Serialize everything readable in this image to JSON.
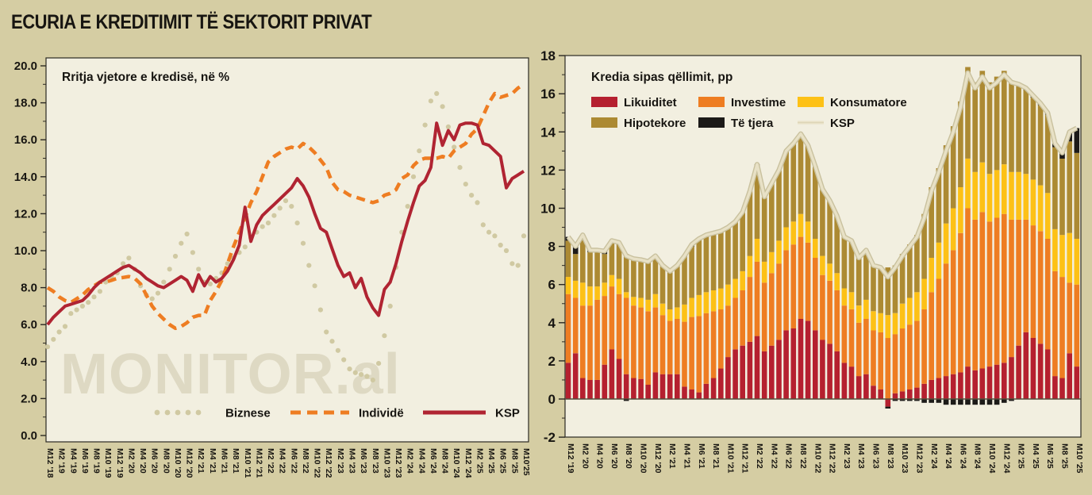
{
  "page": {
    "title": "ECURIA E KREDITIMIT TË SEKTORIT PRIVAT",
    "watermark": "MONITOR.al",
    "colors": {
      "background": "#d5cda3",
      "plot_background": "#f2efe0",
      "frame": "#2b2822",
      "text": "#171511",
      "watermark": "#ded9c3",
      "ksp_line_right_core": "#e8e1c6",
      "ksp_line_right_edge": "#c9c19e"
    }
  },
  "chart_data": [
    {
      "type": "line",
      "title": "Rritja vjetore e kredisë, në %",
      "ylim": [
        0,
        20
      ],
      "ytick_step": 2,
      "ytick_labels": [
        "0.0",
        "2.0",
        "4.0",
        "6.0",
        "8.0",
        "10.0",
        "12.0",
        "14.0",
        "16.0",
        "18.0",
        "20.0"
      ],
      "grid": false,
      "legend_position": "bottom-inside",
      "x_labels": [
        "M12 '18",
        "M2 '19",
        "M4 '19",
        "M6 '19",
        "M8 '19",
        "M10 '19",
        "M12 '19",
        "M2 '20",
        "M4 '20",
        "M6 '20",
        "M8 '20",
        "M10 '20",
        "M12 '20",
        "M2 '21",
        "M4 '21",
        "M6 '21",
        "M8 '21",
        "M10 '21",
        "M12 '21",
        "M2 '22",
        "M4 '22",
        "M6 '22",
        "M8 '22",
        "M10 '22",
        "M12 '22",
        "M2 '23",
        "M4 '23",
        "M6 '23",
        "M8 '23",
        "M10 '23",
        "M12 '23",
        "M2 '24",
        "M4 '24",
        "M6 '24",
        "M8 '24",
        "M10 '24",
        "M12 '24",
        "M2 '25",
        "M4 '25",
        "M6 '25",
        "M8 '25",
        "M10'25"
      ],
      "months_per_label": 2,
      "series": [
        {
          "name": "Biznese",
          "style": "dotted",
          "color": "#d0c9a2",
          "values": [
            4.8,
            5.2,
            5.6,
            5.9,
            6.6,
            6.8,
            7.0,
            7.2,
            7.5,
            7.8,
            8.3,
            8.6,
            8.8,
            9.3,
            9.6,
            9.0,
            8.1,
            7.6,
            7.4,
            7.7,
            8.3,
            9.0,
            9.7,
            10.4,
            10.9,
            9.9,
            9.0,
            8.3,
            8.2,
            8.5,
            8.8,
            9.3,
            9.6,
            9.9,
            10.2,
            10.7,
            11.0,
            11.3,
            11.5,
            11.9,
            12.3,
            12.7,
            12.4,
            11.5,
            10.4,
            9.2,
            8.1,
            6.8,
            5.6,
            5.1,
            4.6,
            4.1,
            3.6,
            3.4,
            3.3,
            3.2,
            3.0,
            3.9,
            5.4,
            7.0,
            9.1,
            11.0,
            12.4,
            14.0,
            15.4,
            16.8,
            18.1,
            18.5,
            17.8,
            16.7,
            15.6,
            14.5,
            13.6,
            13.0,
            12.6,
            11.4,
            11.0,
            10.8,
            10.3,
            10.0,
            9.3,
            9.2,
            10.8
          ]
        },
        {
          "name": "Individë",
          "style": "dashed",
          "color": "#ee7d22",
          "values": [
            8.0,
            7.8,
            7.5,
            7.3,
            7.2,
            7.4,
            7.6,
            7.9,
            8.1,
            8.3,
            8.3,
            8.4,
            8.5,
            8.55,
            8.6,
            8.5,
            8.2,
            7.6,
            7.0,
            6.6,
            6.3,
            6.0,
            5.8,
            5.9,
            6.1,
            6.4,
            6.5,
            6.5,
            7.3,
            7.8,
            8.4,
            9.3,
            10.2,
            11.0,
            11.8,
            12.6,
            13.2,
            14.0,
            14.8,
            15.1,
            15.3,
            15.5,
            15.6,
            15.5,
            15.8,
            15.6,
            15.3,
            14.9,
            14.5,
            13.7,
            13.3,
            13.2,
            13.0,
            12.9,
            12.8,
            12.7,
            12.6,
            12.7,
            13.0,
            13.1,
            13.3,
            13.9,
            14.1,
            14.6,
            14.9,
            15.0,
            15.0,
            15.0,
            15.1,
            15.0,
            15.4,
            15.6,
            15.8,
            16.3,
            16.6,
            17.3,
            18.0,
            18.5,
            18.3,
            18.4,
            18.5,
            18.8,
            19.0
          ]
        },
        {
          "name": "KSP",
          "style": "solid",
          "color": "#b02432",
          "values": [
            6.0,
            6.4,
            6.7,
            7.0,
            7.1,
            7.2,
            7.3,
            7.6,
            8.0,
            8.3,
            8.5,
            8.7,
            8.9,
            9.1,
            9.2,
            9.0,
            8.8,
            8.5,
            8.3,
            8.1,
            8.0,
            8.2,
            8.4,
            8.6,
            8.4,
            7.8,
            8.7,
            8.1,
            8.6,
            8.3,
            8.5,
            8.9,
            9.5,
            10.3,
            12.35,
            10.5,
            11.4,
            11.9,
            12.2,
            12.5,
            12.8,
            13.1,
            13.4,
            13.9,
            13.5,
            12.9,
            12.0,
            11.2,
            11.0,
            10.1,
            9.2,
            8.6,
            8.8,
            8.0,
            8.5,
            7.5,
            6.9,
            6.5,
            7.9,
            8.3,
            9.3,
            10.5,
            11.6,
            12.6,
            13.5,
            13.8,
            14.5,
            16.9,
            15.7,
            16.5,
            16.0,
            16.8,
            16.9,
            16.9,
            16.8,
            15.8,
            15.7,
            15.4,
            15.1,
            13.4,
            13.9,
            14.1,
            14.3
          ]
        }
      ]
    },
    {
      "type": "stacked-bar-with-line",
      "title": "Kredia sipas qëllimit, pp",
      "ylim": [
        -2,
        18
      ],
      "ytick_step": 2,
      "ytick_labels": [
        "-2",
        "0",
        "2",
        "4",
        "6",
        "8",
        "10",
        "12",
        "14",
        "16",
        "18"
      ],
      "grid": false,
      "legend_position": "top-inside",
      "x_labels": [
        "M12 '19",
        "M2 '20",
        "M4 '20",
        "M6 '20",
        "M8 '20",
        "M10 '20",
        "M12 '20",
        "M2 '21",
        "M4 '21",
        "M6 '21",
        "M8 '21",
        "M10 '21",
        "M12 '21",
        "M2 '22",
        "M4 '22",
        "M6 '22",
        "M8 '22",
        "M10 '22",
        "M12 '22",
        "M2 '23",
        "M4 '23",
        "M6 '23",
        "M8 '23",
        "M10 '23",
        "M12 '23",
        "M2 '24",
        "M4 '24",
        "M6 '24",
        "M8 '24",
        "M10 '24",
        "M12 '24",
        "M2 '25",
        "M4 '25",
        "M6 '25",
        "M8 '25",
        "M10 '25"
      ],
      "months_per_label": 2,
      "series": [
        {
          "name": "Likuiditet",
          "color": "#b5202f",
          "values": [
            1.9,
            2.4,
            1.1,
            1.0,
            1.0,
            1.8,
            2.6,
            2.1,
            1.3,
            1.1,
            1.05,
            0.75,
            1.4,
            1.3,
            1.3,
            1.3,
            0.65,
            0.5,
            0.35,
            0.8,
            1.1,
            1.6,
            2.2,
            2.6,
            2.8,
            3.0,
            3.3,
            2.5,
            2.8,
            3.1,
            3.6,
            3.7,
            4.2,
            4.1,
            3.6,
            3.1,
            2.9,
            2.5,
            1.9,
            1.7,
            1.2,
            1.3,
            0.7,
            0.5,
            -0.4,
            0.3,
            0.4,
            0.5,
            0.6,
            0.8,
            1.0,
            1.1,
            1.2,
            1.3,
            1.4,
            1.7,
            1.5,
            1.6,
            1.7,
            1.8,
            1.9,
            2.2,
            2.8,
            3.5,
            3.2,
            2.9,
            2.6,
            1.2,
            1.1,
            2.4,
            1.7
          ]
        },
        {
          "name": "Investime",
          "color": "#ee7d22",
          "values": [
            3.6,
            2.9,
            3.8,
            3.9,
            4.2,
            3.6,
            3.3,
            3.4,
            4.0,
            3.8,
            3.75,
            3.85,
            3.4,
            3.1,
            2.8,
            2.9,
            3.4,
            3.8,
            4.0,
            3.7,
            3.5,
            3.1,
            2.7,
            2.7,
            2.9,
            3.4,
            3.9,
            3.6,
            3.8,
            4.0,
            4.2,
            4.4,
            4.3,
            4.1,
            3.8,
            3.4,
            3.3,
            3.2,
            3.0,
            3.0,
            2.8,
            2.9,
            2.9,
            3.0,
            3.2,
            3.1,
            3.3,
            3.4,
            3.5,
            3.9,
            4.6,
            5.2,
            5.9,
            6.5,
            7.3,
            8.3,
            7.9,
            8.2,
            7.6,
            7.7,
            7.8,
            7.2,
            6.6,
            5.9,
            5.9,
            5.9,
            5.8,
            5.5,
            5.3,
            3.7,
            4.3
          ]
        },
        {
          "name": "Konsumatore",
          "color": "#fdc116",
          "values": [
            0.9,
            0.9,
            1.2,
            1.0,
            0.7,
            0.7,
            0.6,
            0.8,
            0.3,
            0.45,
            0.5,
            0.6,
            0.7,
            0.6,
            0.6,
            0.6,
            0.9,
            1.0,
            1.1,
            1.1,
            1.1,
            1.1,
            1.1,
            1.0,
            1.0,
            1.1,
            1.2,
            1.1,
            1.1,
            1.2,
            1.2,
            1.2,
            1.2,
            1.1,
            1.0,
            1.0,
            0.9,
            0.9,
            0.9,
            0.9,
            0.9,
            1.0,
            1.0,
            1.0,
            1.2,
            1.1,
            1.3,
            1.4,
            1.5,
            1.6,
            1.8,
            1.9,
            2.1,
            2.2,
            2.4,
            2.6,
            2.5,
            2.6,
            2.5,
            2.5,
            2.6,
            2.5,
            2.5,
            2.4,
            2.4,
            2.4,
            2.4,
            2.2,
            2.2,
            2.6,
            2.4
          ]
        },
        {
          "name": "Hipotekore",
          "color": "#ac8a33",
          "values": [
            1.9,
            1.4,
            2.3,
            1.8,
            1.85,
            1.5,
            1.7,
            1.8,
            2.0,
            2.0,
            2.0,
            2.0,
            2.0,
            2.0,
            2.0,
            2.2,
            2.5,
            2.7,
            2.9,
            3.0,
            3.0,
            3.0,
            3.0,
            3.0,
            3.1,
            3.4,
            3.8,
            3.4,
            3.6,
            3.7,
            4.0,
            4.1,
            4.2,
            4.0,
            3.8,
            3.5,
            3.3,
            3.0,
            2.7,
            2.7,
            2.5,
            2.6,
            2.4,
            2.4,
            2.5,
            2.5,
            2.6,
            2.8,
            3.0,
            3.4,
            3.7,
            3.9,
            4.1,
            4.3,
            4.5,
            4.8,
            4.7,
            4.8,
            4.8,
            4.9,
            4.9,
            4.8,
            4.6,
            4.4,
            4.3,
            4.2,
            4.1,
            4.3,
            4.0,
            4.8,
            4.5
          ]
        },
        {
          "name": "Të tjera",
          "color": "#1c1a18",
          "values": [
            0.2,
            0.4,
            0.2,
            0.1,
            0.05,
            0.15,
            0.1,
            0.1,
            -0.1,
            0.0,
            0.0,
            0.0,
            0.0,
            0.0,
            0.0,
            0.0,
            0.05,
            0.1,
            0.05,
            0.0,
            0.0,
            0.0,
            0.0,
            0.0,
            0.0,
            0.0,
            0.1,
            0.0,
            0.0,
            0.0,
            0.0,
            0.0,
            0.0,
            0.0,
            0.0,
            0.0,
            0.0,
            0.0,
            0.0,
            0.0,
            0.0,
            0.0,
            0.0,
            0.0,
            -0.1,
            -0.1,
            -0.1,
            -0.1,
            -0.1,
            -0.2,
            -0.2,
            -0.2,
            -0.3,
            -0.3,
            -0.3,
            -0.3,
            -0.3,
            -0.3,
            -0.3,
            -0.3,
            -0.2,
            -0.1,
            0.0,
            0.1,
            0.1,
            0.1,
            0.1,
            0.2,
            0.3,
            0.5,
            1.3
          ]
        }
      ],
      "line_series": {
        "name": "KSP",
        "color": "#e0d9bb",
        "values": [
          8.5,
          8.0,
          8.6,
          7.8,
          7.8,
          7.75,
          8.3,
          8.2,
          7.5,
          7.35,
          7.3,
          7.2,
          7.5,
          7.0,
          6.7,
          7.0,
          7.5,
          8.1,
          8.4,
          8.6,
          8.7,
          8.8,
          9.0,
          9.3,
          9.8,
          10.9,
          12.3,
          10.6,
          11.3,
          12.0,
          13.0,
          13.4,
          13.9,
          13.3,
          12.2,
          11.0,
          10.4,
          9.6,
          8.5,
          8.3,
          7.4,
          7.8,
          7.0,
          6.9,
          6.4,
          6.9,
          7.5,
          8.0,
          8.5,
          9.5,
          10.9,
          11.9,
          13.0,
          14.0,
          15.3,
          17.1,
          16.3,
          16.9,
          16.3,
          16.6,
          17.0,
          16.6,
          16.5,
          16.3,
          15.9,
          15.5,
          15.0,
          13.4,
          12.9,
          14.0,
          14.2
        ]
      }
    }
  ]
}
